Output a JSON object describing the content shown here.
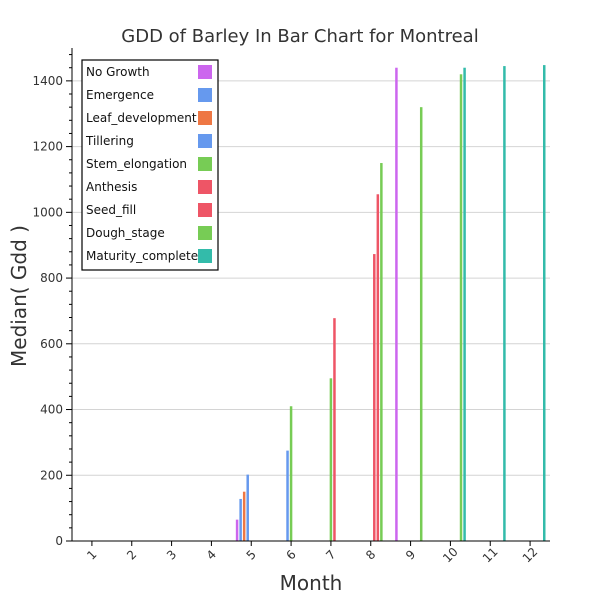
{
  "chart_data": {
    "type": "bar",
    "title": "GDD of Barley In Bar Chart for Montreal",
    "xlabel": "Month",
    "ylabel": "Median( Gdd )",
    "ylim": [
      0,
      1500
    ],
    "yticks": [
      0,
      200,
      400,
      600,
      800,
      1000,
      1200,
      1400
    ],
    "categories": [
      "1",
      "2",
      "3",
      "4",
      "5",
      "6",
      "7",
      "8",
      "9",
      "10",
      "11",
      "12"
    ],
    "grid": "horizontal",
    "legend_position": "top-left",
    "series": [
      {
        "name": "No Growth",
        "color": "#cc66ee",
        "values": [
          0,
          0,
          0,
          0,
          65,
          0,
          0,
          0,
          1440,
          0,
          0,
          0
        ]
      },
      {
        "name": "Emergence",
        "color": "#6699ee",
        "values": [
          0,
          0,
          0,
          0,
          128,
          0,
          0,
          0,
          0,
          0,
          0,
          0
        ]
      },
      {
        "name": "Leaf_development",
        "color": "#ee7744",
        "values": [
          0,
          0,
          0,
          0,
          150,
          0,
          0,
          0,
          0,
          0,
          0,
          0
        ]
      },
      {
        "name": "Tillering",
        "color": "#6699ee",
        "values": [
          0,
          0,
          0,
          0,
          202,
          275,
          0,
          0,
          0,
          0,
          0,
          0
        ]
      },
      {
        "name": "Stem_elongation",
        "color": "#77cc55",
        "values": [
          0,
          0,
          0,
          0,
          0,
          410,
          495,
          0,
          0,
          0,
          0,
          0
        ]
      },
      {
        "name": "Anthesis",
        "color": "#ee5566",
        "values": [
          0,
          0,
          0,
          0,
          0,
          0,
          678,
          873,
          0,
          0,
          0,
          0
        ]
      },
      {
        "name": "Seed_fill",
        "color": "#ee5566",
        "values": [
          0,
          0,
          0,
          0,
          0,
          0,
          0,
          1055,
          0,
          0,
          0,
          0
        ]
      },
      {
        "name": "Dough_stage",
        "color": "#77cc55",
        "values": [
          0,
          0,
          0,
          0,
          0,
          0,
          0,
          1150,
          1320,
          1420,
          0,
          0
        ]
      },
      {
        "name": "Maturity_complete",
        "color": "#33bbaa",
        "values": [
          0,
          0,
          0,
          0,
          0,
          0,
          0,
          0,
          0,
          1440,
          1445,
          1448
        ]
      }
    ]
  }
}
